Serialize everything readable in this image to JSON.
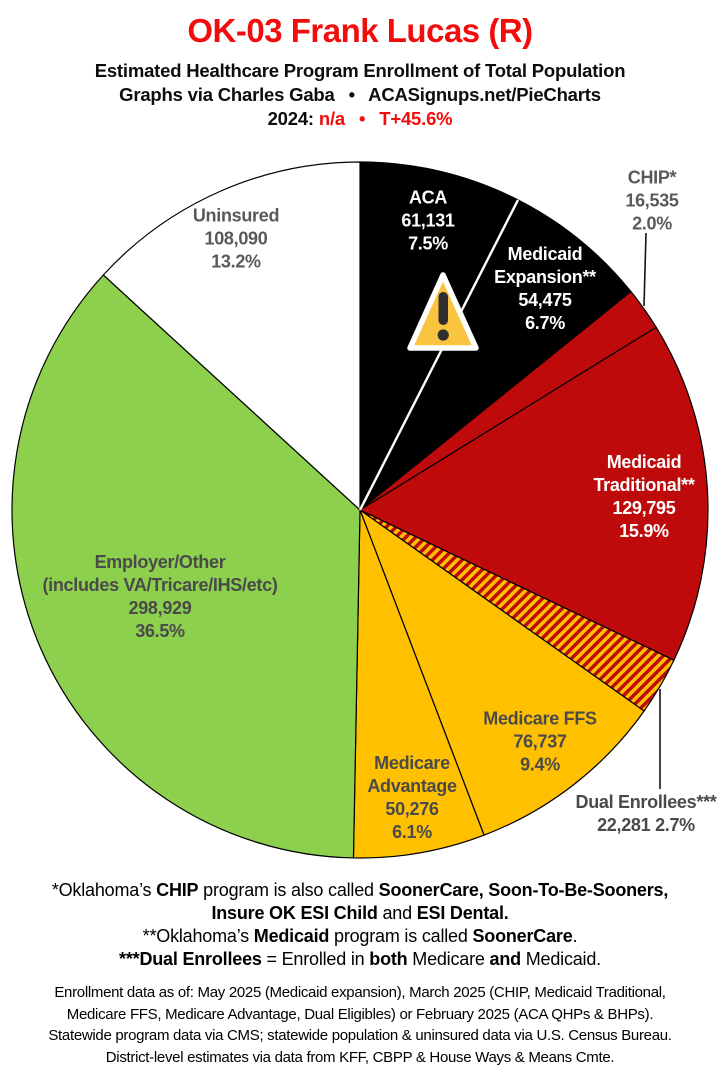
{
  "colors": {
    "title_red": "#F20D0D",
    "accent_red_text": "#F20D0D",
    "pie_red": "#BE0A0A",
    "pie_yellow": "#FFC000",
    "pie_green": "#8DD04E",
    "pie_black": "#000000",
    "pie_white": "#FFFFFF",
    "label_dark": "#4A4A4A",
    "label_gray": "#595959",
    "warning_fill": "#F9C440",
    "warning_glyph": "#312F2F"
  },
  "header": {
    "title": "OK-03 Frank Lucas (R)",
    "subtitle1": "Estimated Healthcare Program Enrollment of Total Population",
    "subtitle2": "Graphs via Charles Gaba  •  ACASignups.net/PieCharts",
    "line4_segments": [
      {
        "t": "2024: "
      },
      {
        "t": "n/a",
        "red": true
      },
      {
        "t": "  •  ",
        "red": true
      },
      {
        "t": "T+45.6%",
        "red": true
      }
    ]
  },
  "chart_data": {
    "type": "pie",
    "title": "Estimated Healthcare Program Enrollment of Total Population",
    "start_angle_deg_clockwise_from_top": 0,
    "hatch_colors": [
      "#FFC000",
      "#BE0A0A"
    ],
    "slices": [
      {
        "name": "ACA",
        "label_lines": [
          "ACA"
        ],
        "value": 61131,
        "value_label": "61,131",
        "pct": 7.5,
        "pct_label": "7.5%",
        "color": "#000000",
        "text_color": "#FFFFFF"
      },
      {
        "name": "Medicaid Expansion**",
        "label_lines": [
          "Medicaid",
          "Expansion**"
        ],
        "value": 54475,
        "value_label": "54,475",
        "pct": 6.7,
        "pct_label": "6.7%",
        "color": "#000000",
        "text_color": "#FFFFFF"
      },
      {
        "name": "CHIP*",
        "label_lines": [
          "CHIP*"
        ],
        "value": 16535,
        "value_label": "16,535",
        "pct": 2.0,
        "pct_label": "2.0%",
        "color": "#BE0A0A",
        "text_color": "#595959"
      },
      {
        "name": "Medicaid Traditional**",
        "label_lines": [
          "Medicaid",
          "Traditional**"
        ],
        "value": 129795,
        "value_label": "129,795",
        "pct": 15.9,
        "pct_label": "15.9%",
        "color": "#BE0A0A",
        "text_color": "#FFFFFF"
      },
      {
        "name": "Dual Enrollees***",
        "label_lines": [
          "Dual Enrollees***"
        ],
        "value": 22281,
        "value_label": "22,281",
        "pct": 2.7,
        "pct_label": "2.7%",
        "color": "hatch",
        "text_color": "#4A4A4A"
      },
      {
        "name": "Medicare FFS",
        "label_lines": [
          "Medicare FFS"
        ],
        "value": 76737,
        "value_label": "76,737",
        "pct": 9.4,
        "pct_label": "9.4%",
        "color": "#FFC000",
        "text_color": "#4A4A4A"
      },
      {
        "name": "Medicare Advantage",
        "label_lines": [
          "Medicare",
          "Advantage"
        ],
        "value": 50276,
        "value_label": "50,276",
        "pct": 6.1,
        "pct_label": "6.1%",
        "color": "#FFC000",
        "text_color": "#4A4A4A"
      },
      {
        "name": "Employer/Other (includes VA/Tricare/IHS/etc)",
        "label_lines": [
          "Employer/Other",
          "(includes VA/Tricare/IHS/etc)"
        ],
        "value": 298929,
        "value_label": "298,929",
        "pct": 36.5,
        "pct_label": "36.5%",
        "color": "#8DD04E",
        "text_color": "#4A4A4A"
      },
      {
        "name": "Uninsured",
        "label_lines": [
          "Uninsured"
        ],
        "value": 108090,
        "value_label": "108,090",
        "pct": 13.2,
        "pct_label": "13.2%",
        "color": "#FFFFFF",
        "text_color": "#595959"
      }
    ]
  },
  "footnotes": {
    "lines": [
      [
        {
          "t": "*Oklahoma’s "
        },
        {
          "t": "CHIP",
          "b": true
        },
        {
          "t": " program is also called "
        },
        {
          "t": "SoonerCare, Soon-To-Be-Sooners,",
          "b": true
        }
      ],
      [
        {
          "t": "Insure OK ESI Child",
          "b": true
        },
        {
          "t": " and "
        },
        {
          "t": "ESI Dental.",
          "b": true
        }
      ],
      [
        {
          "t": "**Oklahoma’s "
        },
        {
          "t": "Medicaid",
          "b": true
        },
        {
          "t": " program is called "
        },
        {
          "t": "SoonerCare",
          "b": true
        },
        {
          "t": "."
        }
      ],
      [
        {
          "t": "***Dual Enrollees",
          "b": true
        },
        {
          "t": " = Enrolled in "
        },
        {
          "t": "both",
          "b": true
        },
        {
          "t": " Medicare "
        },
        {
          "t": "and",
          "b": true
        },
        {
          "t": " Medicaid."
        }
      ]
    ]
  },
  "fine_print": {
    "lines": [
      "Enrollment data as of: May 2025 (Medicaid expansion), March 2025 (CHIP, Medicaid Traditional,",
      "Medicare FFS, Medicare Advantage, Dual Eligibles) or February 2025 (ACA QHPs & BHPs).",
      "Statewide program data via CMS; statewide population & uninsured data via U.S. Census Bureau.",
      "District-level estimates via data from KFF, CBPP & House Ways & Means Cmte."
    ]
  }
}
